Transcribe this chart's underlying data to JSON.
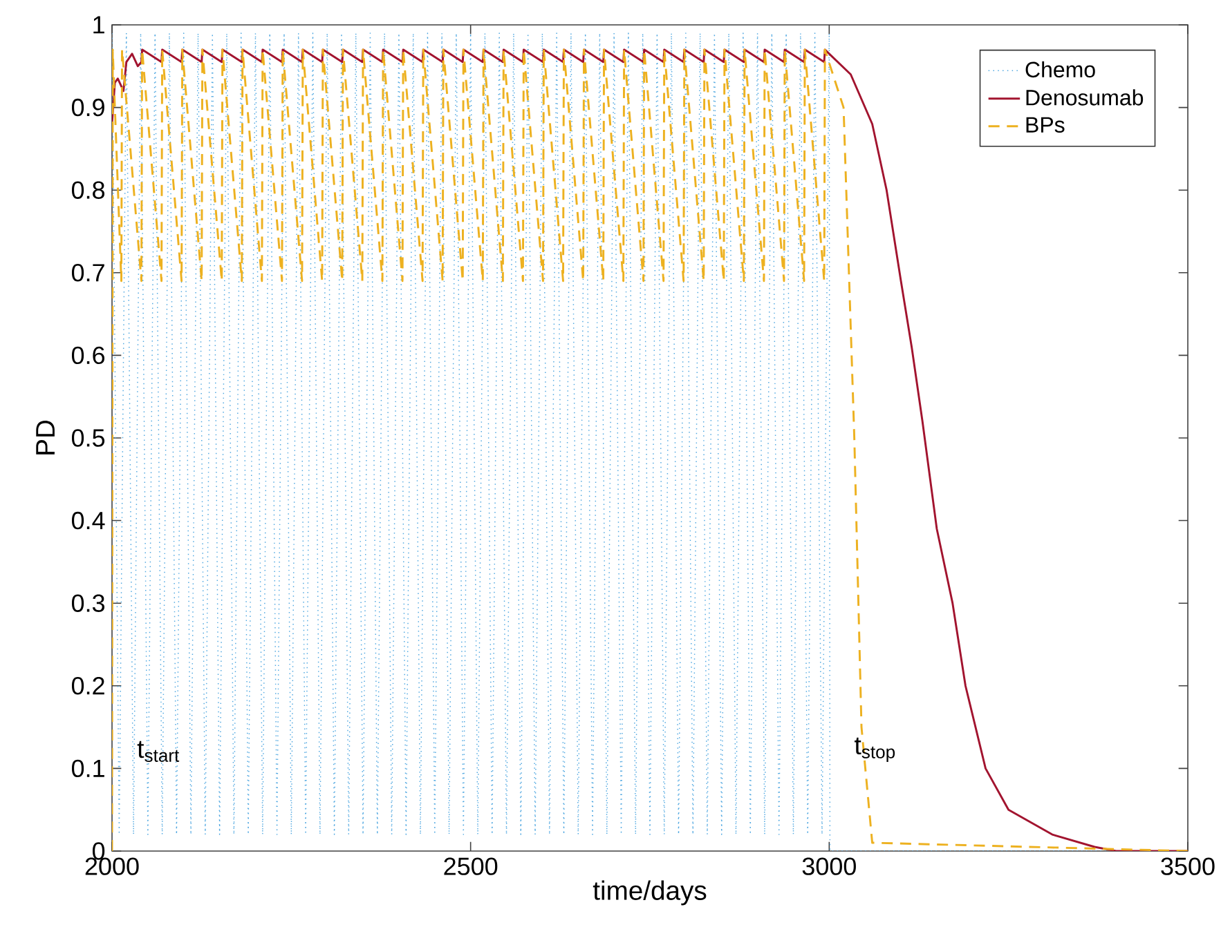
{
  "chart_data": {
    "type": "line",
    "xlabel": "time/days",
    "ylabel": "PD",
    "xlim": [
      2000,
      3500
    ],
    "ylim": [
      0,
      1
    ],
    "xticks": [
      2000,
      2500,
      3000,
      3500
    ],
    "yticks": [
      0,
      0.1,
      0.2,
      0.3,
      0.4,
      0.5,
      0.6,
      0.7,
      0.8,
      0.9,
      1
    ],
    "legend": "top right",
    "grid": false,
    "marker": "none",
    "annotations": [
      {
        "text": "t$_{start}$",
        "x": 2000,
        "y": 0.1
      },
      {
        "text": "t$_{stop}$",
        "x": 3000,
        "y": 0.1
      }
    ],
    "series": [
      {
        "name": "Chemo",
        "color": "#4da6e0",
        "line_style": "dotted",
        "x": [
          2000,
          2010,
          2020,
          2030,
          2040,
          2050,
          2060,
          2070,
          2080,
          2090,
          2100,
          2110,
          2120,
          2130,
          2140,
          2150,
          2160,
          2170,
          2180,
          2190,
          2200,
          2210,
          2220,
          2230,
          2240,
          2250,
          2260,
          2270,
          2280,
          2290,
          2300,
          2310,
          2320,
          2330,
          2340,
          2350,
          2360,
          2370,
          2380,
          2390,
          2400,
          2410,
          2420,
          2430,
          2440,
          2450,
          2460,
          2470,
          2480,
          2490,
          2500,
          2510,
          2520,
          2530,
          2540,
          2550,
          2560,
          2570,
          2580,
          2590,
          2600,
          2610,
          2620,
          2630,
          2640,
          2650,
          2660,
          2670,
          2680,
          2690,
          2700,
          2710,
          2720,
          2730,
          2740,
          2750,
          2760,
          2770,
          2780,
          2790,
          2800,
          2810,
          2820,
          2830,
          2840,
          2850,
          2860,
          2870,
          2880,
          2890,
          2900,
          2910,
          2920,
          2930,
          2940,
          2950,
          2960,
          2970,
          2980,
          2990,
          3000,
          3001,
          3500
        ],
        "values": [
          0.99,
          0.02,
          0.99,
          0.02,
          0.99,
          0.02,
          0.99,
          0.02,
          0.99,
          0.02,
          0.99,
          0.02,
          0.99,
          0.02,
          0.99,
          0.02,
          0.99,
          0.02,
          0.99,
          0.02,
          0.99,
          0.02,
          0.99,
          0.02,
          0.99,
          0.02,
          0.99,
          0.02,
          0.99,
          0.02,
          0.99,
          0.02,
          0.99,
          0.02,
          0.99,
          0.02,
          0.99,
          0.02,
          0.99,
          0.02,
          0.99,
          0.02,
          0.99,
          0.02,
          0.99,
          0.02,
          0.99,
          0.02,
          0.99,
          0.02,
          0.99,
          0.02,
          0.99,
          0.02,
          0.99,
          0.02,
          0.99,
          0.02,
          0.99,
          0.02,
          0.99,
          0.02,
          0.99,
          0.02,
          0.99,
          0.02,
          0.99,
          0.02,
          0.99,
          0.02,
          0.99,
          0.02,
          0.99,
          0.02,
          0.99,
          0.02,
          0.99,
          0.02,
          0.99,
          0.02,
          0.99,
          0.02,
          0.99,
          0.02,
          0.99,
          0.02,
          0.99,
          0.02,
          0.99,
          0.02,
          0.99,
          0.02,
          0.99,
          0.02,
          0.99,
          0.02,
          0.99,
          0.02,
          0.99,
          0.02,
          0.99,
          0,
          0
        ]
      },
      {
        "name": "Denosumab",
        "color": "#a2142f",
        "line_style": "solid",
        "x": [
          2000,
          2004,
          2008,
          2016,
          2020,
          2028,
          2036,
          2041,
          2042,
          2069,
          2070,
          2097,
          2098,
          2125,
          2126,
          2153,
          2154,
          2181,
          2182,
          2209,
          2210,
          2237,
          2238,
          2265,
          2266,
          2293,
          2294,
          2321,
          2322,
          2349,
          2350,
          2377,
          2378,
          2405,
          2406,
          2433,
          2434,
          2461,
          2462,
          2489,
          2490,
          2517,
          2518,
          2545,
          2546,
          2573,
          2574,
          2601,
          2602,
          2629,
          2630,
          2657,
          2658,
          2685,
          2686,
          2713,
          2714,
          2741,
          2742,
          2769,
          2770,
          2797,
          2798,
          2825,
          2826,
          2853,
          2854,
          2881,
          2882,
          2909,
          2910,
          2937,
          2938,
          2965,
          2966,
          2993,
          2994,
          3030,
          3060,
          3080,
          3100,
          3115,
          3130,
          3150,
          3172,
          3190,
          3218,
          3250,
          3311,
          3370,
          3400,
          3500
        ],
        "values": [
          0.88,
          0.93,
          0.935,
          0.92,
          0.955,
          0.965,
          0.95,
          0.955,
          0.97,
          0.955,
          0.97,
          0.955,
          0.97,
          0.955,
          0.97,
          0.955,
          0.97,
          0.955,
          0.97,
          0.955,
          0.97,
          0.955,
          0.97,
          0.955,
          0.97,
          0.955,
          0.97,
          0.955,
          0.97,
          0.955,
          0.97,
          0.955,
          0.97,
          0.955,
          0.97,
          0.955,
          0.97,
          0.955,
          0.97,
          0.955,
          0.97,
          0.955,
          0.97,
          0.955,
          0.97,
          0.955,
          0.97,
          0.955,
          0.97,
          0.955,
          0.97,
          0.955,
          0.97,
          0.955,
          0.97,
          0.955,
          0.97,
          0.955,
          0.97,
          0.955,
          0.97,
          0.955,
          0.97,
          0.955,
          0.97,
          0.955,
          0.97,
          0.955,
          0.97,
          0.955,
          0.97,
          0.955,
          0.97,
          0.955,
          0.97,
          0.955,
          0.97,
          0.94,
          0.88,
          0.8,
          0.69,
          0.61,
          0.52,
          0.39,
          0.3,
          0.2,
          0.1,
          0.05,
          0.02,
          0.005,
          0,
          0
        ]
      },
      {
        "name": "BPs",
        "color": "#edb120",
        "line_style": "dashed",
        "x": [
          2000,
          2001,
          2013,
          2014,
          2041,
          2042,
          2069,
          2070,
          2097,
          2098,
          2125,
          2126,
          2153,
          2154,
          2181,
          2182,
          2209,
          2210,
          2237,
          2238,
          2265,
          2266,
          2293,
          2294,
          2321,
          2322,
          2349,
          2350,
          2377,
          2378,
          2405,
          2406,
          2433,
          2434,
          2461,
          2462,
          2489,
          2490,
          2517,
          2518,
          2545,
          2546,
          2573,
          2574,
          2601,
          2602,
          2629,
          2630,
          2657,
          2658,
          2685,
          2686,
          2713,
          2714,
          2741,
          2742,
          2769,
          2770,
          2797,
          2798,
          2825,
          2826,
          2853,
          2854,
          2881,
          2882,
          2909,
          2910,
          2937,
          2938,
          2965,
          2966,
          2993,
          2994,
          3020,
          3035,
          3045,
          3060,
          3500
        ],
        "values": [
          0,
          0.97,
          0.69,
          0.97,
          0.69,
          0.97,
          0.69,
          0.97,
          0.69,
          0.97,
          0.69,
          0.97,
          0.69,
          0.97,
          0.69,
          0.97,
          0.69,
          0.97,
          0.69,
          0.97,
          0.69,
          0.97,
          0.69,
          0.97,
          0.69,
          0.97,
          0.69,
          0.97,
          0.69,
          0.97,
          0.69,
          0.97,
          0.69,
          0.97,
          0.69,
          0.97,
          0.69,
          0.97,
          0.69,
          0.97,
          0.69,
          0.97,
          0.69,
          0.97,
          0.69,
          0.97,
          0.69,
          0.97,
          0.69,
          0.97,
          0.69,
          0.97,
          0.69,
          0.97,
          0.69,
          0.97,
          0.69,
          0.97,
          0.69,
          0.97,
          0.69,
          0.97,
          0.69,
          0.97,
          0.69,
          0.97,
          0.69,
          0.97,
          0.69,
          0.97,
          0.69,
          0.97,
          0.69,
          0.97,
          0.9,
          0.5,
          0.15,
          0.01,
          0
        ]
      }
    ]
  }
}
